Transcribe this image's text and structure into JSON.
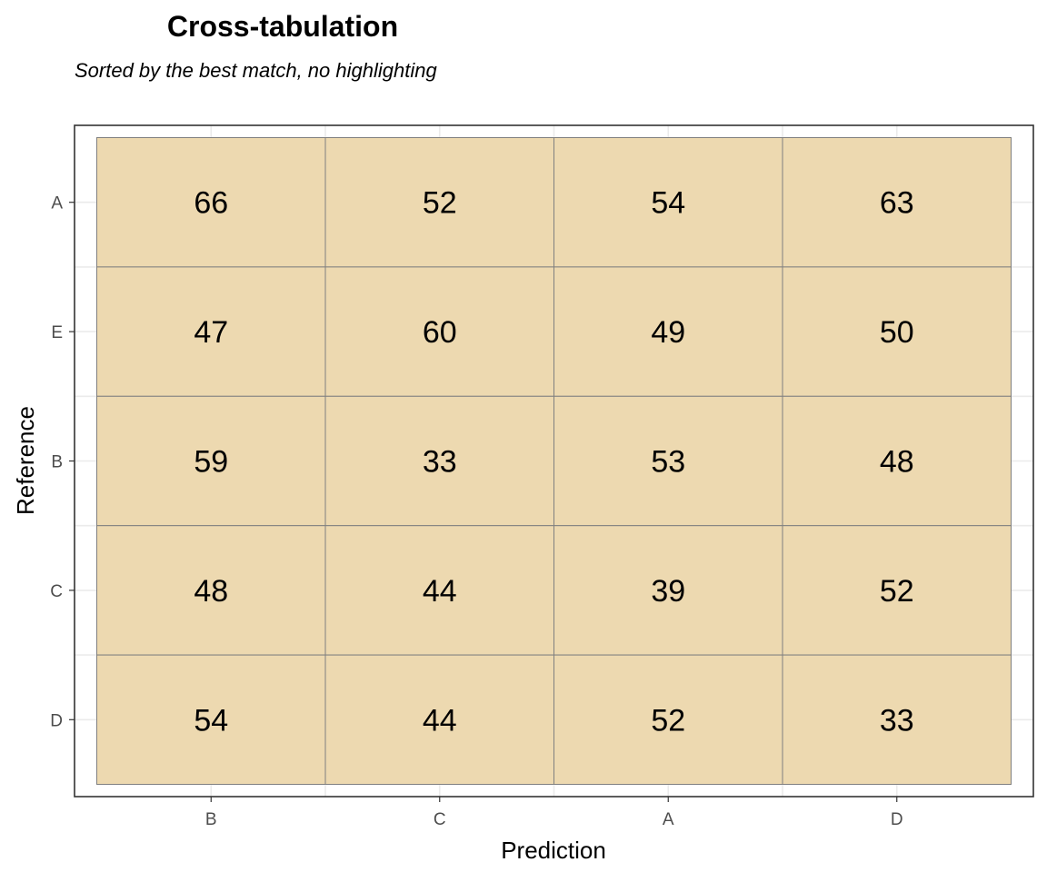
{
  "chart_data": {
    "type": "heatmap",
    "title": "Cross-tabulation",
    "subtitle": "Sorted by the best match, no highlighting",
    "xlabel": "Prediction",
    "ylabel": "Reference",
    "x_categories": [
      "B",
      "C",
      "A",
      "D"
    ],
    "y_categories": [
      "A",
      "E",
      "B",
      "C",
      "D"
    ],
    "values": [
      [
        66,
        52,
        54,
        63
      ],
      [
        47,
        60,
        49,
        50
      ],
      [
        59,
        33,
        53,
        48
      ],
      [
        48,
        44,
        39,
        52
      ],
      [
        54,
        44,
        52,
        33
      ]
    ],
    "tile_color": "#EDD9B0",
    "tile_border_color": "#808080",
    "grid": true,
    "legend": "none"
  }
}
